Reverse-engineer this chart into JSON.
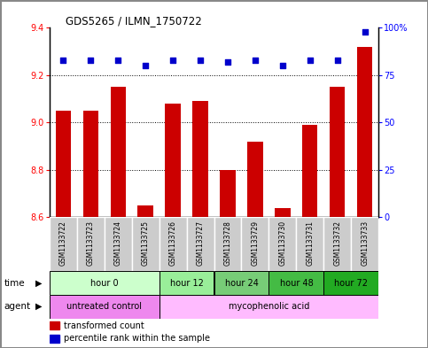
{
  "title": "GDS5265 / ILMN_1750722",
  "samples": [
    "GSM1133722",
    "GSM1133723",
    "GSM1133724",
    "GSM1133725",
    "GSM1133726",
    "GSM1133727",
    "GSM1133728",
    "GSM1133729",
    "GSM1133730",
    "GSM1133731",
    "GSM1133732",
    "GSM1133733"
  ],
  "transformed_count": [
    9.05,
    9.05,
    9.15,
    8.65,
    9.08,
    9.09,
    8.8,
    8.92,
    8.64,
    8.99,
    9.15,
    9.32
  ],
  "percentile_rank": [
    83,
    83,
    83,
    80,
    83,
    83,
    82,
    83,
    80,
    83,
    83,
    98
  ],
  "ylim_left": [
    8.6,
    9.4
  ],
  "ylim_right": [
    0,
    100
  ],
  "yticks_left": [
    8.6,
    8.8,
    9.0,
    9.2,
    9.4
  ],
  "yticks_right": [
    0,
    25,
    50,
    75,
    100
  ],
  "bar_color": "#cc0000",
  "dot_color": "#0000cc",
  "bar_baseline": 8.6,
  "time_groups": [
    {
      "label": "hour 0",
      "indices": [
        0,
        1,
        2,
        3
      ],
      "color": "#ccffcc"
    },
    {
      "label": "hour 12",
      "indices": [
        4,
        5
      ],
      "color": "#99ee99"
    },
    {
      "label": "hour 24",
      "indices": [
        6,
        7
      ],
      "color": "#77cc77"
    },
    {
      "label": "hour 48",
      "indices": [
        8,
        9
      ],
      "color": "#44bb44"
    },
    {
      "label": "hour 72",
      "indices": [
        10,
        11
      ],
      "color": "#22aa22"
    }
  ],
  "agent_groups": [
    {
      "label": "untreated control",
      "indices": [
        0,
        1,
        2,
        3
      ],
      "color": "#ee88ee"
    },
    {
      "label": "mycophenolic acid",
      "indices": [
        4,
        5,
        6,
        7,
        8,
        9,
        10,
        11
      ],
      "color": "#ffbbff"
    }
  ],
  "legend_bar_label": "transformed count",
  "legend_dot_label": "percentile rank within the sample",
  "xlabel_time": "time",
  "xlabel_agent": "agent",
  "plot_bg_color": "#ffffff",
  "sample_bg_color": "#cccccc",
  "fig_border_color": "#aaaaaa"
}
